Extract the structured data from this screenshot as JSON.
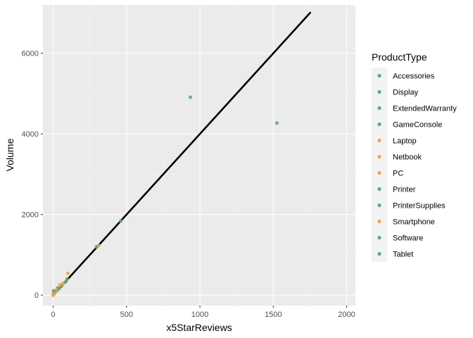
{
  "chart_data": {
    "type": "scatter",
    "xlabel": "x5StarReviews",
    "ylabel": "Volume",
    "xlim": [
      -70,
      2060
    ],
    "ylim": [
      -260,
      7200
    ],
    "x_ticks": [
      0,
      500,
      1000,
      1500,
      2000
    ],
    "y_ticks": [
      0,
      2000,
      4000,
      6000
    ],
    "grid": true,
    "legend": {
      "title": "ProductType",
      "position": "right",
      "items": [
        {
          "label": "Accessories",
          "color": "#66A875"
        },
        {
          "label": "Display",
          "color": "#66A875"
        },
        {
          "label": "ExtendedWarranty",
          "color": "#66A875"
        },
        {
          "label": "GameConsole",
          "color": "#66A875"
        },
        {
          "label": "Laptop",
          "color": "#F4A24C"
        },
        {
          "label": "Netbook",
          "color": "#F4A24C"
        },
        {
          "label": "PC",
          "color": "#F4A24C"
        },
        {
          "label": "Printer",
          "color": "#66A875"
        },
        {
          "label": "PrinterSupplies",
          "color": "#66A875"
        },
        {
          "label": "Smartphone",
          "color": "#F4A24C"
        },
        {
          "label": "Software",
          "color": "#66A875"
        },
        {
          "label": "Tablet",
          "color": "#66A875"
        }
      ]
    },
    "fit_line": {
      "x": [
        0,
        1755
      ],
      "y": [
        0,
        7020
      ],
      "color": "#000000"
    },
    "points": [
      {
        "x": 935,
        "y": 4910,
        "color": "#66A875"
      },
      {
        "x": 1525,
        "y": 4270,
        "color": "#66A875"
      },
      {
        "x": 460,
        "y": 1840,
        "color": "#66A875"
      },
      {
        "x": 310,
        "y": 1230,
        "color": "#F4A24C"
      },
      {
        "x": 295,
        "y": 1200,
        "color": "#66A875"
      },
      {
        "x": 100,
        "y": 540,
        "color": "#F4A24C"
      },
      {
        "x": 95,
        "y": 400,
        "color": "#66A875"
      },
      {
        "x": 65,
        "y": 270,
        "color": "#F4A24C"
      },
      {
        "x": 55,
        "y": 220,
        "color": "#66A875"
      },
      {
        "x": 45,
        "y": 260,
        "color": "#F4A24C"
      },
      {
        "x": 30,
        "y": 180,
        "color": "#66A875"
      },
      {
        "x": 25,
        "y": 140,
        "color": "#F4A24C"
      },
      {
        "x": 20,
        "y": 100,
        "color": "#66A875"
      },
      {
        "x": 15,
        "y": 90,
        "color": "#F4A24C"
      },
      {
        "x": 10,
        "y": 60,
        "color": "#66A875"
      },
      {
        "x": 8,
        "y": 40,
        "color": "#F4A24C"
      },
      {
        "x": 5,
        "y": 80,
        "color": "#66A875"
      },
      {
        "x": 3,
        "y": 110,
        "color": "#66A875"
      },
      {
        "x": 2,
        "y": 30,
        "color": "#F4A24C"
      },
      {
        "x": 0,
        "y": 10,
        "color": "#66A875"
      },
      {
        "x": 0,
        "y": 0,
        "color": "#F4A24C"
      },
      {
        "x": 40,
        "y": 160,
        "color": "#66A875"
      },
      {
        "x": 70,
        "y": 300,
        "color": "#F4A24C"
      },
      {
        "x": 85,
        "y": 330,
        "color": "#66A875"
      }
    ]
  }
}
